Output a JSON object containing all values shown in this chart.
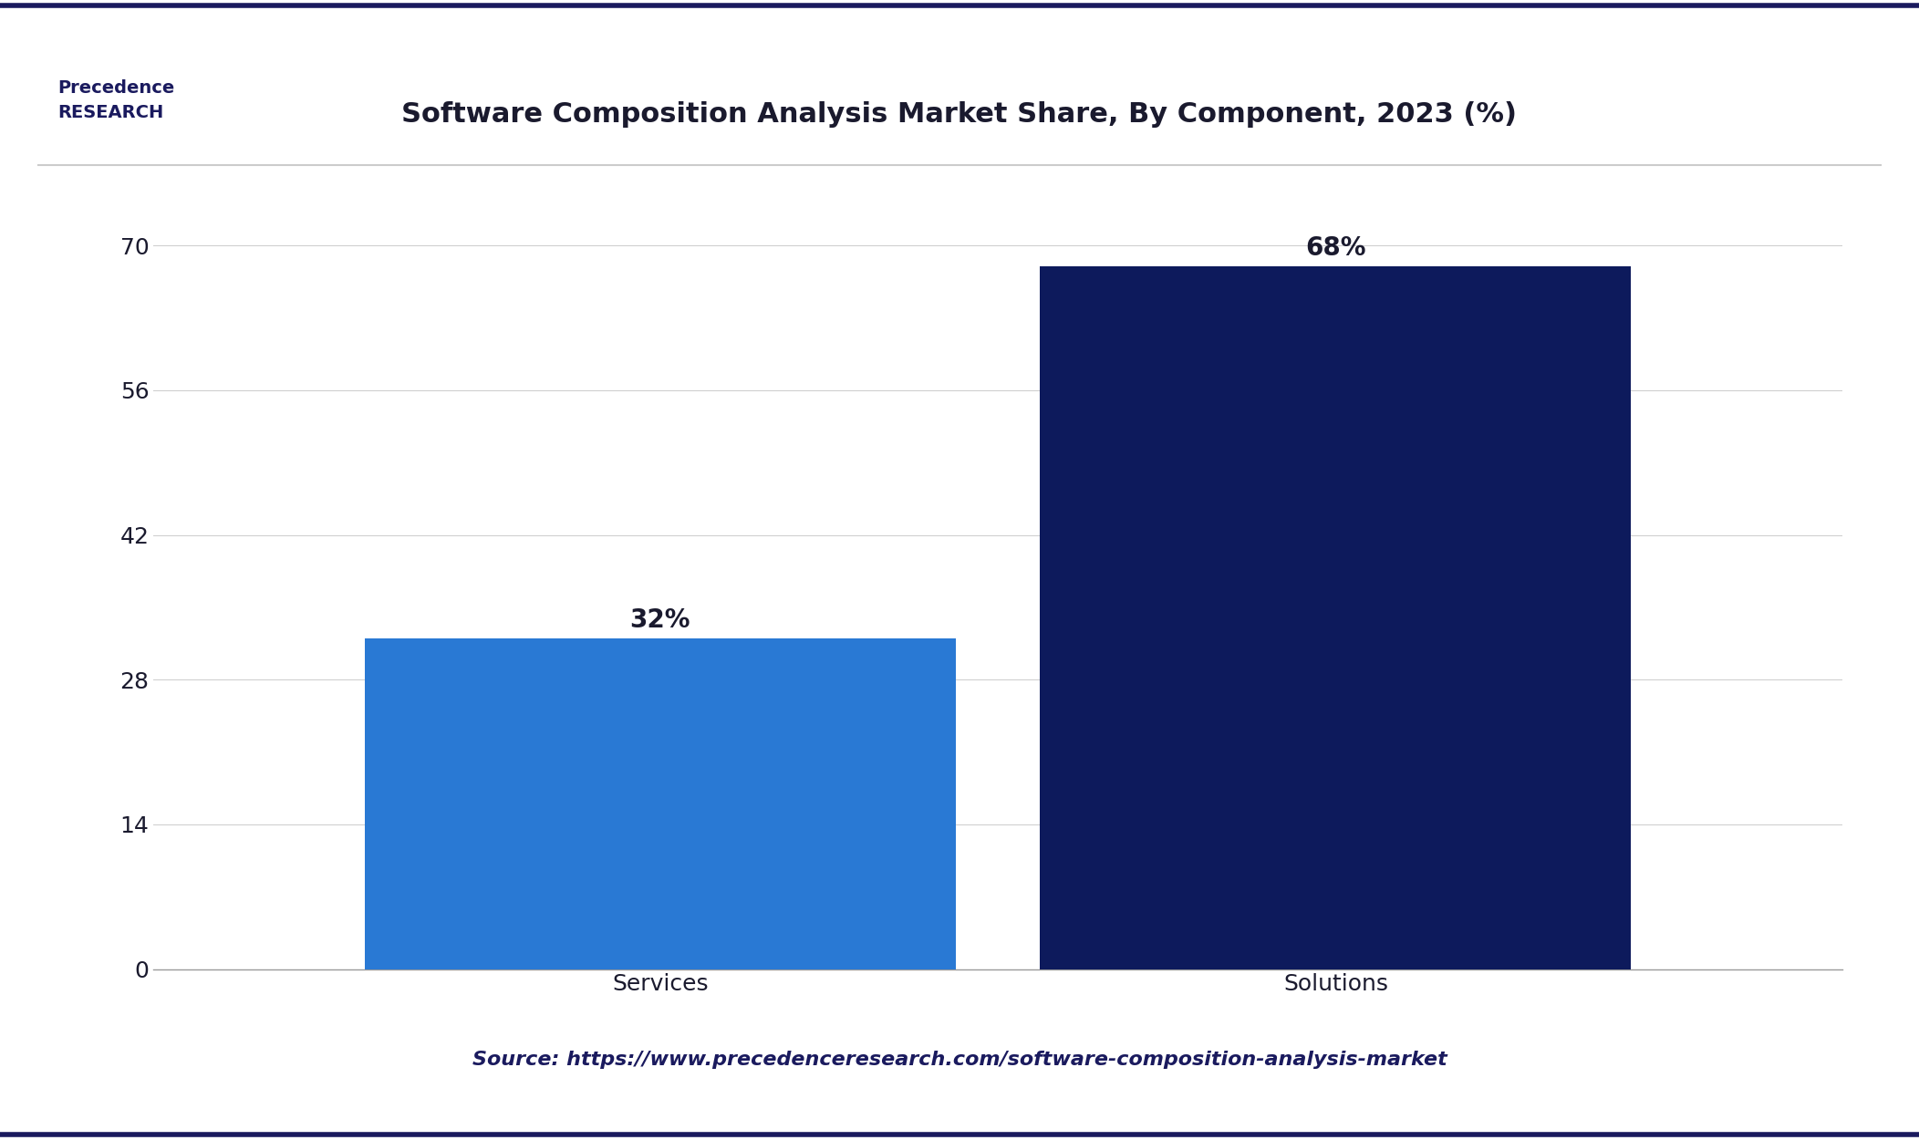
{
  "title": "Software Composition Analysis Market Share, By Component, 2023 (%)",
  "categories": [
    "Services",
    "Solutions"
  ],
  "values": [
    32,
    68
  ],
  "bar_colors": [
    "#2979d4",
    "#0d1a5c"
  ],
  "label_texts": [
    "32%",
    "68%"
  ],
  "yticks": [
    0,
    14,
    28,
    42,
    56,
    70
  ],
  "ylim": [
    0,
    75
  ],
  "source_text": "Source: https://www.precedenceresearch.com/software-composition-analysis-market",
  "background_color": "#ffffff",
  "plot_bg_color": "#ffffff",
  "title_color": "#1a1a2e",
  "bar_label_color": "#1a1a2e",
  "axis_label_color": "#1a1a2e",
  "source_color": "#1a1a5e",
  "top_border_color": "#1a1a5e",
  "bottom_border_color": "#1a1a5e",
  "title_fontsize": 22,
  "bar_label_fontsize": 20,
  "tick_fontsize": 18,
  "source_fontsize": 16,
  "bar_width": 0.35
}
